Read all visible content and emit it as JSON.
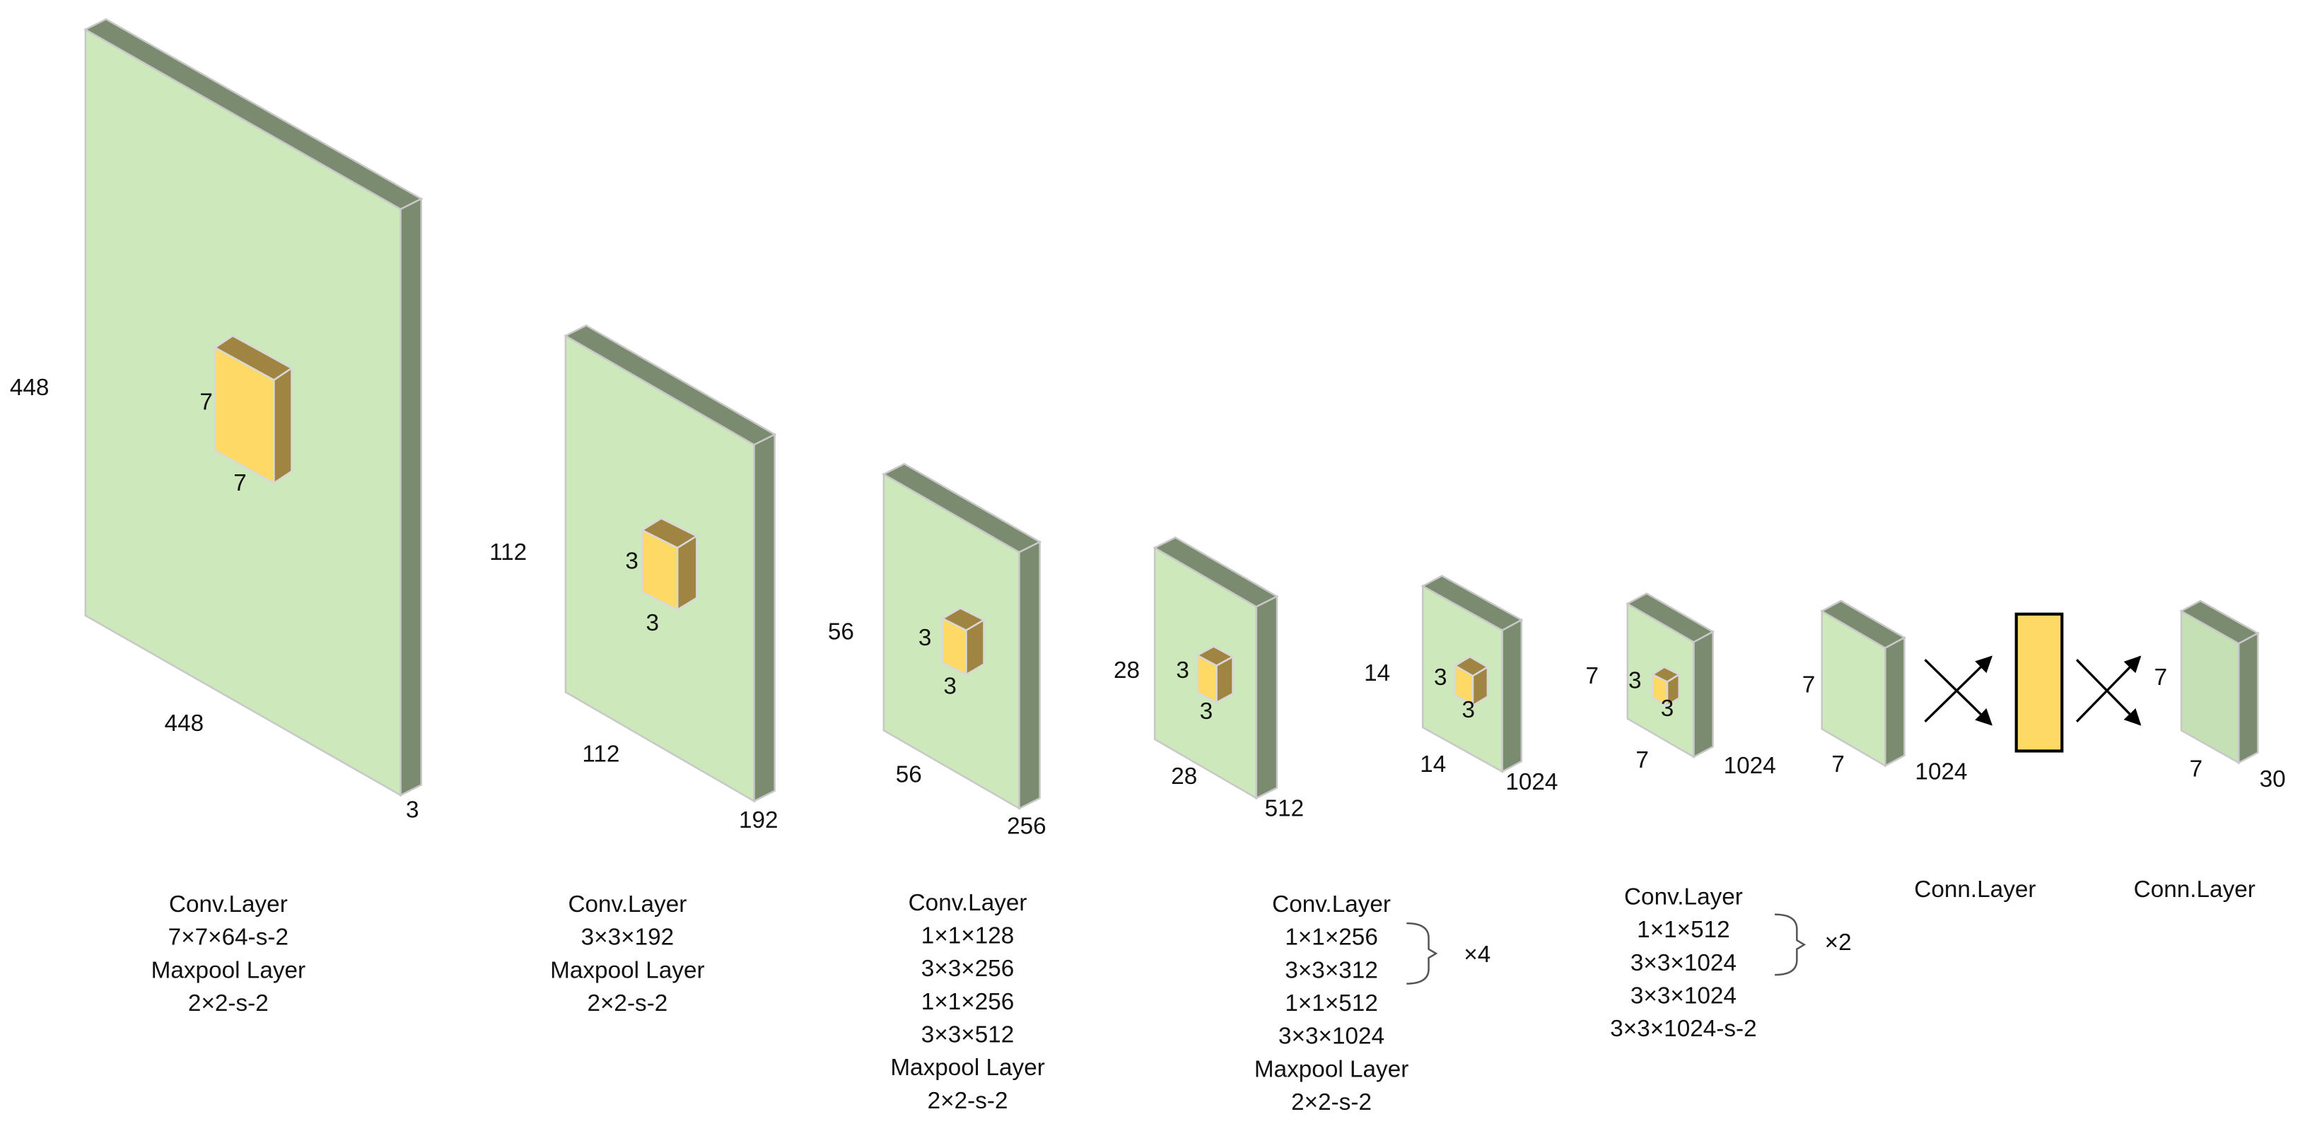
{
  "layers": [
    {
      "labels": [
        "448",
        "448",
        "3",
        "7",
        "7"
      ],
      "caption": [
        "Conv.Layer",
        "7×7×64-s-2",
        "Maxpool Layer",
        "2×2-s-2"
      ]
    },
    {
      "labels": [
        "112",
        "112",
        "192",
        "3",
        "3"
      ],
      "caption": [
        "Conv.Layer",
        "3×3×192",
        "Maxpool Layer",
        "2×2-s-2"
      ]
    },
    {
      "labels": [
        "56",
        "56",
        "256",
        "3",
        "3"
      ],
      "caption": [
        "Conv.Layer",
        "1×1×128",
        "3×3×256",
        "1×1×256",
        "3×3×512",
        "Maxpool Layer",
        "2×2-s-2"
      ]
    },
    {
      "labels": [
        "28",
        "28",
        "512",
        "3",
        "3"
      ],
      "caption": [
        "Conv.Layer",
        "1×1×256",
        "3×3×312",
        "1×1×512",
        "3×3×1024",
        "Maxpool Layer",
        "2×2-s-2"
      ],
      "repeat": "×4"
    },
    {
      "labels": [
        "14",
        "14",
        "1024",
        "3",
        "3"
      ]
    },
    {
      "labels": [
        "7",
        "7",
        "1024",
        "3",
        "3"
      ],
      "caption": [
        "Conv.Layer",
        "1×1×512",
        "3×3×1024",
        "3×3×1024",
        "3×3×1024-s-2"
      ],
      "repeat": "×2"
    },
    {
      "labels": [
        "7",
        "7",
        "1024"
      ],
      "caption": [
        "Conn.Layer"
      ]
    },
    {
      "labels": [
        "7",
        "7",
        "30"
      ],
      "caption": [
        "Conn.Layer"
      ]
    }
  ]
}
